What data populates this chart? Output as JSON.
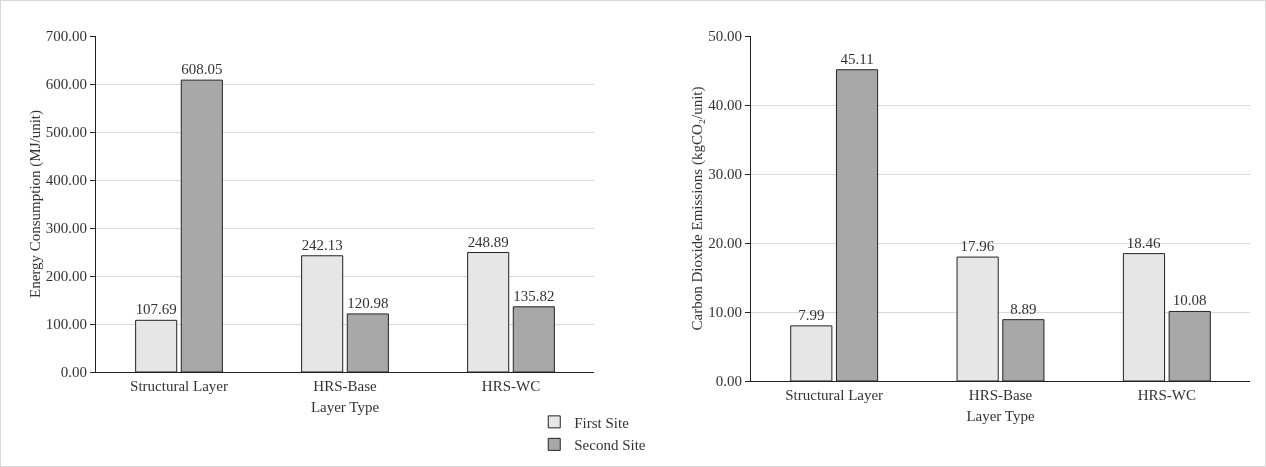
{
  "chart_data": [
    {
      "type": "bar",
      "xlabel": "Layer Type",
      "ylabel": "Energy Consumption (MJ/unit)",
      "categories": [
        "Structural Layer",
        "HRS-Base",
        "HRS-WC"
      ],
      "series": [
        {
          "name": "First Site",
          "color": "#e6e6e6",
          "values": [
            107.69,
            242.13,
            248.89
          ]
        },
        {
          "name": "Second Site",
          "color": "#a8a8a8",
          "values": [
            608.05,
            120.98,
            135.82
          ]
        }
      ],
      "ylim": [
        0,
        700
      ],
      "yticks": [
        {
          "value": 0,
          "label": "0.00"
        },
        {
          "value": 100,
          "label": "100.00"
        },
        {
          "value": 200,
          "label": "200.00"
        },
        {
          "value": 300,
          "label": "300.00"
        },
        {
          "value": 400,
          "label": "400.00"
        },
        {
          "value": 500,
          "label": "500.00"
        },
        {
          "value": 600,
          "label": "600.00"
        },
        {
          "value": 700,
          "label": "700.00"
        }
      ],
      "grid": "y",
      "legend": "bottom right",
      "data_labels": true
    },
    {
      "type": "bar",
      "xlabel": "Layer Type",
      "ylabel": "Carbon Dioxide Emissions (kgCO₂/unit)",
      "categories": [
        "Structural Layer",
        "HRS-Base",
        "HRS-WC"
      ],
      "series": [
        {
          "color": "#e6e6e6",
          "values": [
            7.99,
            17.96,
            18.46
          ]
        },
        {
          "color": "#a8a8a8",
          "values": [
            45.11,
            8.89,
            10.08
          ]
        }
      ],
      "ylim": [
        0,
        50
      ],
      "yticks": [
        {
          "value": 0,
          "label": "0.00"
        },
        {
          "value": 10,
          "label": "10.00"
        },
        {
          "value": 20,
          "label": "20.00"
        },
        {
          "value": 30,
          "label": "30.00"
        },
        {
          "value": 40,
          "label": "40.00"
        },
        {
          "value": 50,
          "label": "50.00"
        }
      ],
      "grid": "y",
      "data_labels": true
    }
  ]
}
